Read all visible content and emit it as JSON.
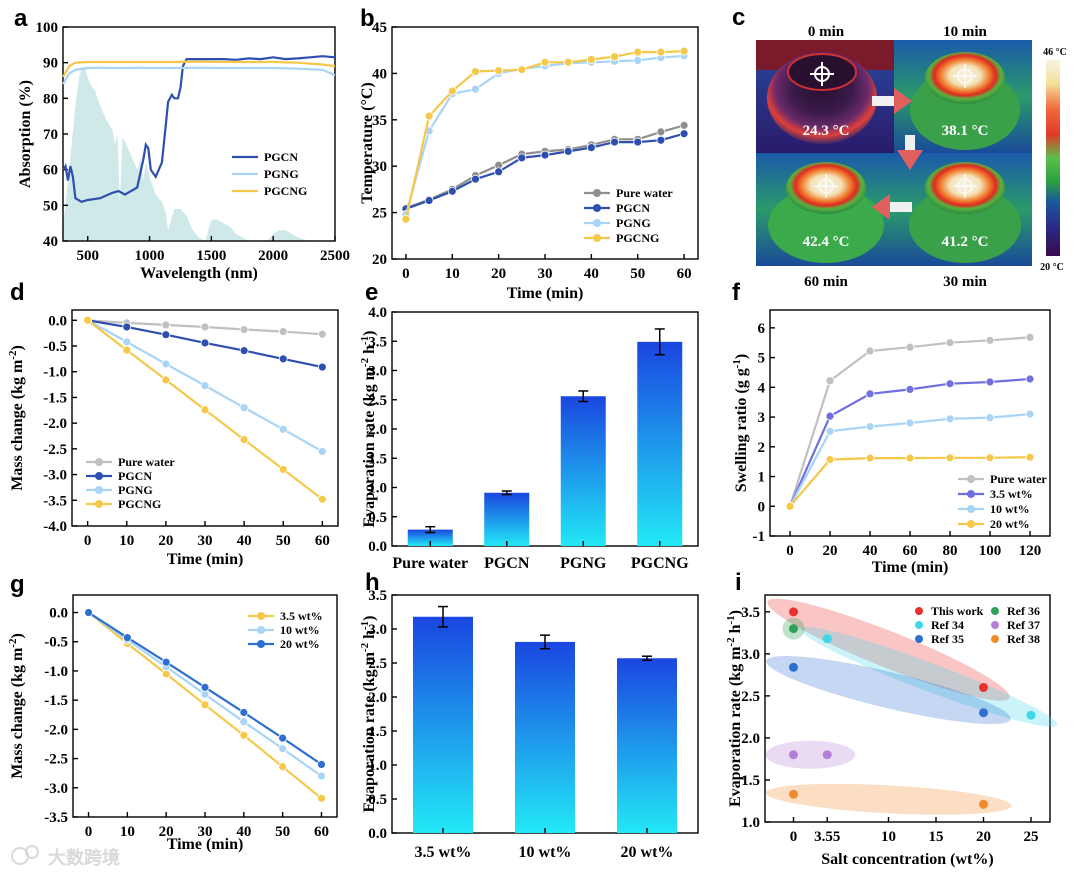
{
  "watermark": "大数跨境",
  "colors": {
    "pgcn": "#2e4fb0",
    "pgng": "#a8d4f5",
    "pgcng": "#f5c84a",
    "water": "#8f8f8f",
    "pure_water_f": "#c0c0c0",
    "w35_f": "#6f6fe0",
    "spectrum": "#cfe8e8"
  },
  "thermal": {
    "letter": "c",
    "times": [
      "0 min",
      "10 min",
      "60 min",
      "30 min"
    ],
    "temps": [
      "24.3 °C",
      "38.1 °C",
      "42.4 °C",
      "41.2 °C"
    ],
    "scale_max": "46 °C",
    "scale_min": "20 °C"
  },
  "chart_data": [
    {
      "id": "a",
      "letter": "a",
      "type": "line",
      "xlabel": "Wavelength (nm)",
      "ylabel": "Absorption (%)",
      "xlim": [
        300,
        2500
      ],
      "ylim": [
        40,
        100
      ],
      "xticks": [
        500,
        1000,
        1500,
        2000,
        2500
      ],
      "yticks": [
        40,
        50,
        60,
        70,
        80,
        90,
        100
      ],
      "legend": [
        "PGCN",
        "PGNG",
        "PGCNG"
      ],
      "series": [
        {
          "name": "PGCN",
          "color": "#2e4fb0",
          "x": [
            300,
            320,
            340,
            360,
            380,
            400,
            450,
            500,
            600,
            700,
            750,
            800,
            900,
            950,
            970,
            990,
            1010,
            1050,
            1100,
            1130,
            1150,
            1180,
            1200,
            1230,
            1250,
            1270,
            1300,
            1320,
            1350,
            1400,
            1500,
            1600,
            1700,
            1800,
            1900,
            2000,
            2100,
            2200,
            2300,
            2400,
            2500
          ],
          "y": [
            60,
            61,
            57,
            61,
            58,
            52,
            51,
            51.5,
            52,
            53.5,
            54,
            53,
            55,
            63,
            67,
            66,
            60,
            58,
            62,
            72,
            79,
            81,
            80,
            80,
            83,
            89,
            91,
            91,
            91,
            91,
            91,
            91,
            90.8,
            91.2,
            91,
            91.5,
            91,
            91.2,
            91.5,
            91.8,
            91.5
          ]
        },
        {
          "name": "PGNG",
          "color": "#a8d4f5",
          "x": [
            300,
            350,
            400,
            500,
            600,
            700,
            800,
            900,
            1000,
            1200,
            1400,
            1600,
            1800,
            2000,
            2200,
            2400,
            2500
          ],
          "y": [
            84,
            87,
            88,
            88.5,
            88.6,
            88.5,
            88.5,
            88.6,
            88.5,
            88.5,
            88.6,
            88.5,
            88.5,
            88.5,
            88.3,
            88,
            86.5
          ]
        },
        {
          "name": "PGCNG",
          "color": "#f5c84a",
          "x": [
            300,
            350,
            400,
            500,
            600,
            700,
            800,
            900,
            1000,
            1200,
            1400,
            1600,
            1800,
            2000,
            2200,
            2400,
            2500
          ],
          "y": [
            86,
            89,
            90,
            90.2,
            90.2,
            90.2,
            90.2,
            90.2,
            90.2,
            90.2,
            90.3,
            90.2,
            90.2,
            90.2,
            90,
            89.5,
            89
          ]
        }
      ],
      "spectrum": {
        "x": [
          300,
          350,
          400,
          430,
          460,
          480,
          500,
          520,
          560,
          600,
          650,
          700,
          720,
          740,
          760,
          780,
          800,
          850,
          900,
          930,
          950,
          970,
          1000,
          1050,
          1100,
          1130,
          1150,
          1200,
          1250,
          1300,
          1350,
          1400,
          1450,
          1500,
          1550,
          1600,
          1650,
          1700,
          1750,
          1800,
          1850,
          1900,
          1950,
          2000,
          2050,
          2100,
          2150,
          2200,
          2250,
          2300,
          2400,
          2500
        ],
        "y": [
          44,
          60,
          78,
          86,
          89,
          88,
          86,
          84,
          82,
          78,
          74,
          71,
          67,
          70,
          50,
          69,
          68,
          64,
          60,
          63,
          57,
          62,
          58,
          53,
          51,
          48,
          43,
          49,
          49,
          47,
          43,
          41,
          40,
          46,
          46,
          45,
          44,
          42,
          41,
          40,
          40,
          40,
          40,
          42,
          43,
          43,
          42,
          41,
          40.5,
          40,
          40,
          40
        ]
      }
    },
    {
      "id": "b",
      "letter": "b",
      "type": "line",
      "xlabel": "Time (min)",
      "ylabel": "Temperature (°C)",
      "xlim": [
        -3,
        63
      ],
      "ylim": [
        20,
        45
      ],
      "xticks": [
        0,
        10,
        20,
        30,
        40,
        50,
        60
      ],
      "yticks": [
        20,
        25,
        30,
        35,
        40,
        45
      ],
      "legend": [
        "Pure water",
        "PGCN",
        "PGNG",
        "PGCNG"
      ],
      "x": [
        0,
        5,
        10,
        15,
        20,
        25,
        30,
        35,
        40,
        45,
        50,
        55,
        60
      ],
      "series": [
        {
          "name": "Pure water",
          "color": "#8f8f8f",
          "values": [
            25.5,
            26.4,
            27.5,
            29,
            30.1,
            31.3,
            31.6,
            31.8,
            32.3,
            32.9,
            32.9,
            33.7,
            34.4
          ]
        },
        {
          "name": "PGCN",
          "color": "#2e4fb0",
          "values": [
            25.4,
            26.3,
            27.3,
            28.6,
            29.4,
            30.9,
            31.2,
            31.6,
            32,
            32.6,
            32.6,
            32.8,
            33.5
          ]
        },
        {
          "name": "PGNG",
          "color": "#a8d4f5",
          "values": [
            24.8,
            33.8,
            37.8,
            38.3,
            40,
            40.5,
            40.8,
            41.1,
            41.2,
            41.3,
            41.4,
            41.7,
            41.9
          ]
        },
        {
          "name": "PGCNG",
          "color": "#f5c84a",
          "values": [
            24.3,
            35.4,
            38.1,
            40.2,
            40.3,
            40.4,
            41.2,
            41.2,
            41.5,
            41.8,
            42.3,
            42.3,
            42.4
          ]
        }
      ]
    },
    {
      "id": "d",
      "letter": "d",
      "type": "line",
      "xlabel": "Time (min)",
      "ylabel": "Mass change (kg m-2)",
      "xlim": [
        -4,
        64
      ],
      "ylim": [
        -4.0,
        0.2
      ],
      "xticks": [
        0,
        10,
        20,
        30,
        40,
        50,
        60
      ],
      "yticks": [
        -4.0,
        -3.5,
        -3.0,
        -2.5,
        -2.0,
        -1.5,
        -1.0,
        -0.5,
        0.0
      ],
      "legend": [
        "Pure water",
        "PGCN",
        "PGNG",
        "PGCNG"
      ],
      "x": [
        0,
        10,
        20,
        30,
        40,
        50,
        60
      ],
      "series": [
        {
          "name": "Pure water",
          "color": "#c0c0c0",
          "values": [
            0,
            -0.05,
            -0.09,
            -0.13,
            -0.18,
            -0.22,
            -0.27
          ]
        },
        {
          "name": "PGCN",
          "color": "#2e4fb0",
          "values": [
            0,
            -0.13,
            -0.28,
            -0.44,
            -0.59,
            -0.75,
            -0.91
          ]
        },
        {
          "name": "PGNG",
          "color": "#a8d4f5",
          "values": [
            0,
            -0.42,
            -0.85,
            -1.27,
            -1.7,
            -2.12,
            -2.55
          ]
        },
        {
          "name": "PGCNG",
          "color": "#f5c84a",
          "values": [
            0,
            -0.58,
            -1.16,
            -1.74,
            -2.32,
            -2.9,
            -3.48
          ]
        }
      ]
    },
    {
      "id": "e",
      "letter": "e",
      "type": "bar",
      "xlabel": "",
      "ylabel": "Evaporation rate (kg m-2 h-1)",
      "ylim": [
        0,
        4.0
      ],
      "yticks": [
        0.0,
        0.5,
        1.0,
        1.5,
        2.0,
        2.5,
        3.0,
        3.5,
        4.0
      ],
      "categories": [
        "Pure water",
        "PGCN",
        "PGNG",
        "PGCNG"
      ],
      "values": [
        0.28,
        0.91,
        2.56,
        3.49
      ],
      "errors": [
        0.05,
        0.03,
        0.09,
        0.22
      ]
    },
    {
      "id": "f",
      "letter": "f",
      "type": "line",
      "xlabel": "Time (min)",
      "ylabel": "Swelling ratio (g g-1)",
      "xlim": [
        -10,
        130
      ],
      "ylim": [
        -1,
        6.6
      ],
      "xticks": [
        0,
        20,
        40,
        60,
        80,
        100,
        120
      ],
      "yticks": [
        -1,
        0,
        1,
        2,
        3,
        4,
        5,
        6
      ],
      "legend": [
        "Pure water",
        "3.5 wt%",
        "10 wt%",
        "20 wt%"
      ],
      "x": [
        0,
        20,
        40,
        60,
        80,
        100,
        120
      ],
      "series": [
        {
          "name": "Pure water",
          "color": "#c0c0c0",
          "values": [
            0,
            4.22,
            5.22,
            5.35,
            5.5,
            5.58,
            5.68
          ]
        },
        {
          "name": "3.5 wt%",
          "color": "#6f6fe0",
          "values": [
            0,
            3.03,
            3.78,
            3.93,
            4.12,
            4.18,
            4.28
          ]
        },
        {
          "name": "10 wt%",
          "color": "#a8d4f5",
          "values": [
            0,
            2.52,
            2.68,
            2.8,
            2.94,
            2.98,
            3.1
          ]
        },
        {
          "name": "20 wt%",
          "color": "#f5c84a",
          "values": [
            0,
            1.57,
            1.62,
            1.62,
            1.63,
            1.63,
            1.65
          ]
        }
      ]
    },
    {
      "id": "g",
      "letter": "g",
      "type": "line",
      "xlabel": "Time (min)",
      "ylabel": "Mass change (kg m-2)",
      "xlim": [
        -4,
        64
      ],
      "ylim": [
        -3.5,
        0.3
      ],
      "xticks": [
        0,
        10,
        20,
        30,
        40,
        50,
        60
      ],
      "yticks": [
        -3.5,
        -3.0,
        -2.5,
        -2.0,
        -1.5,
        -1.0,
        -0.5,
        0.0
      ],
      "legend": [
        "3.5 wt%",
        "10 wt%",
        "20 wt%"
      ],
      "x": [
        0,
        10,
        20,
        30,
        40,
        50,
        60
      ],
      "series": [
        {
          "name": "3.5 wt%",
          "color": "#f5c84a",
          "values": [
            0,
            -0.53,
            -1.05,
            -1.58,
            -2.1,
            -2.64,
            -3.18
          ]
        },
        {
          "name": "10 wt%",
          "color": "#a8d4f5",
          "values": [
            0,
            -0.47,
            -0.93,
            -1.4,
            -1.87,
            -2.33,
            -2.8
          ]
        },
        {
          "name": "20 wt%",
          "color": "#2e6fd0",
          "values": [
            0,
            -0.43,
            -0.85,
            -1.28,
            -1.71,
            -2.15,
            -2.6
          ]
        }
      ]
    },
    {
      "id": "h",
      "letter": "h",
      "type": "bar",
      "xlabel": "",
      "ylabel": "Evaporation rate (kg m-2 h-1)",
      "ylim": [
        0,
        3.5
      ],
      "yticks": [
        0.0,
        0.5,
        1.0,
        1.5,
        2.0,
        2.5,
        3.0,
        3.5
      ],
      "categories": [
        "3.5 wt%",
        "10 wt%",
        "20 wt%"
      ],
      "values": [
        3.18,
        2.81,
        2.57
      ],
      "errors": [
        0.15,
        0.1,
        0.03
      ]
    },
    {
      "id": "i",
      "letter": "i",
      "type": "scatter",
      "xlabel": "Salt concentration (wt%)",
      "ylabel": "Evaporation rate (kg m-2 h-1)",
      "xlim": [
        -3,
        27
      ],
      "ylim": [
        1.0,
        3.7
      ],
      "xticks": [
        0,
        3.55,
        10,
        15,
        20,
        25
      ],
      "xtick_labels": [
        "0",
        "3.55",
        "10",
        "15",
        "20",
        "25"
      ],
      "yticks": [
        1.0,
        1.5,
        2.0,
        2.5,
        3.0,
        3.5
      ],
      "legend": [
        "This work",
        "Ref 34",
        "Ref 35",
        "Ref 36",
        "Ref 37",
        "Ref 38"
      ],
      "series": [
        {
          "name": "This work",
          "color": "#e8312f",
          "points": [
            [
              0,
              3.5
            ],
            [
              20,
              2.6
            ]
          ]
        },
        {
          "name": "Ref 34",
          "color": "#3fd8e8",
          "points": [
            [
              3.55,
              3.18
            ],
            [
              25,
              2.27
            ]
          ]
        },
        {
          "name": "Ref 35",
          "color": "#2e6fd0",
          "points": [
            [
              0,
              2.84
            ],
            [
              20,
              2.3
            ]
          ]
        },
        {
          "name": "Ref 36",
          "color": "#2fa05a",
          "points": [
            [
              0,
              3.3
            ]
          ]
        },
        {
          "name": "Ref 37",
          "color": "#b57fd8",
          "points": [
            [
              0,
              1.8
            ],
            [
              3.55,
              1.8
            ]
          ]
        },
        {
          "name": "Ref 38",
          "color": "#f08a2a",
          "points": [
            [
              0,
              1.33
            ],
            [
              20,
              1.21
            ]
          ]
        }
      ]
    }
  ]
}
